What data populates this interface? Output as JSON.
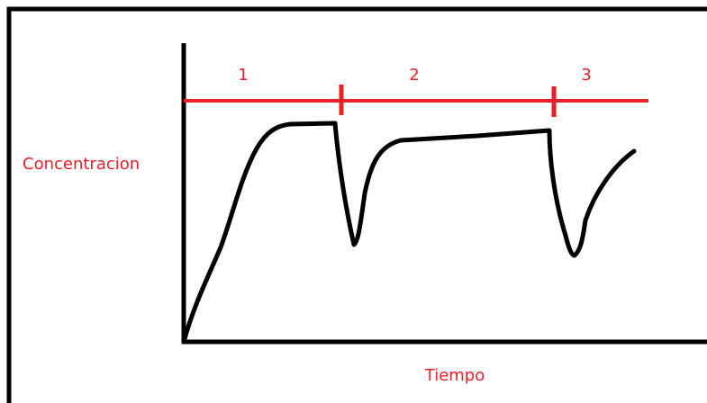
{
  "diagram": {
    "y_axis_label": "Concentracion",
    "x_axis_label": "Tiempo",
    "phases": [
      "1",
      "2",
      "3"
    ]
  }
}
